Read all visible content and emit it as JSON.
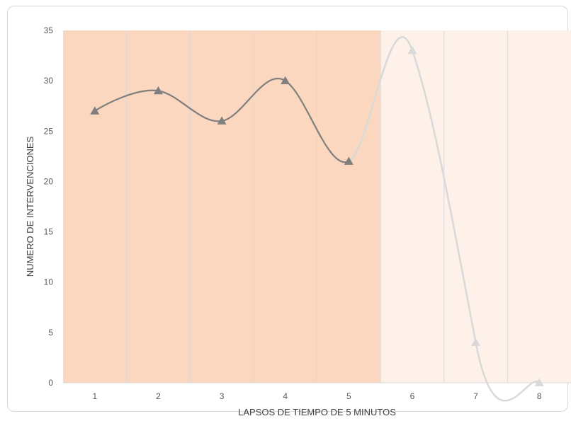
{
  "chart_data": {
    "type": "line",
    "title": "",
    "xlabel": "LAPSOS DE TIEMPO DE 5 MINUTOS",
    "ylabel": "NUMERO DE INTERVENCIONES",
    "categories": [
      "1",
      "2",
      "3",
      "4",
      "5",
      "6",
      "7",
      "8"
    ],
    "series": [
      {
        "values": [
          27,
          29,
          26,
          30,
          22,
          33,
          4,
          0
        ]
      }
    ],
    "ylim": [
      0,
      35
    ],
    "yticks": [
      "0",
      "5",
      "10",
      "15",
      "20",
      "25",
      "30",
      "35"
    ],
    "grid": "vertical",
    "marker": "triangle",
    "smooth": true,
    "shaded_regions": [
      {
        "from_category": "1",
        "to_category": "5",
        "color": "#fbd7bf"
      },
      {
        "from_category": "6",
        "to_category": "8",
        "color": "#fdf1ea"
      }
    ],
    "colors": {
      "line_shaded": "#7f7f7f",
      "line_light": "#d9d9d9",
      "marker_shaded": "#7f7f7f",
      "marker_light": "#d9d9d9",
      "gridline": "#d9d9d9"
    }
  }
}
